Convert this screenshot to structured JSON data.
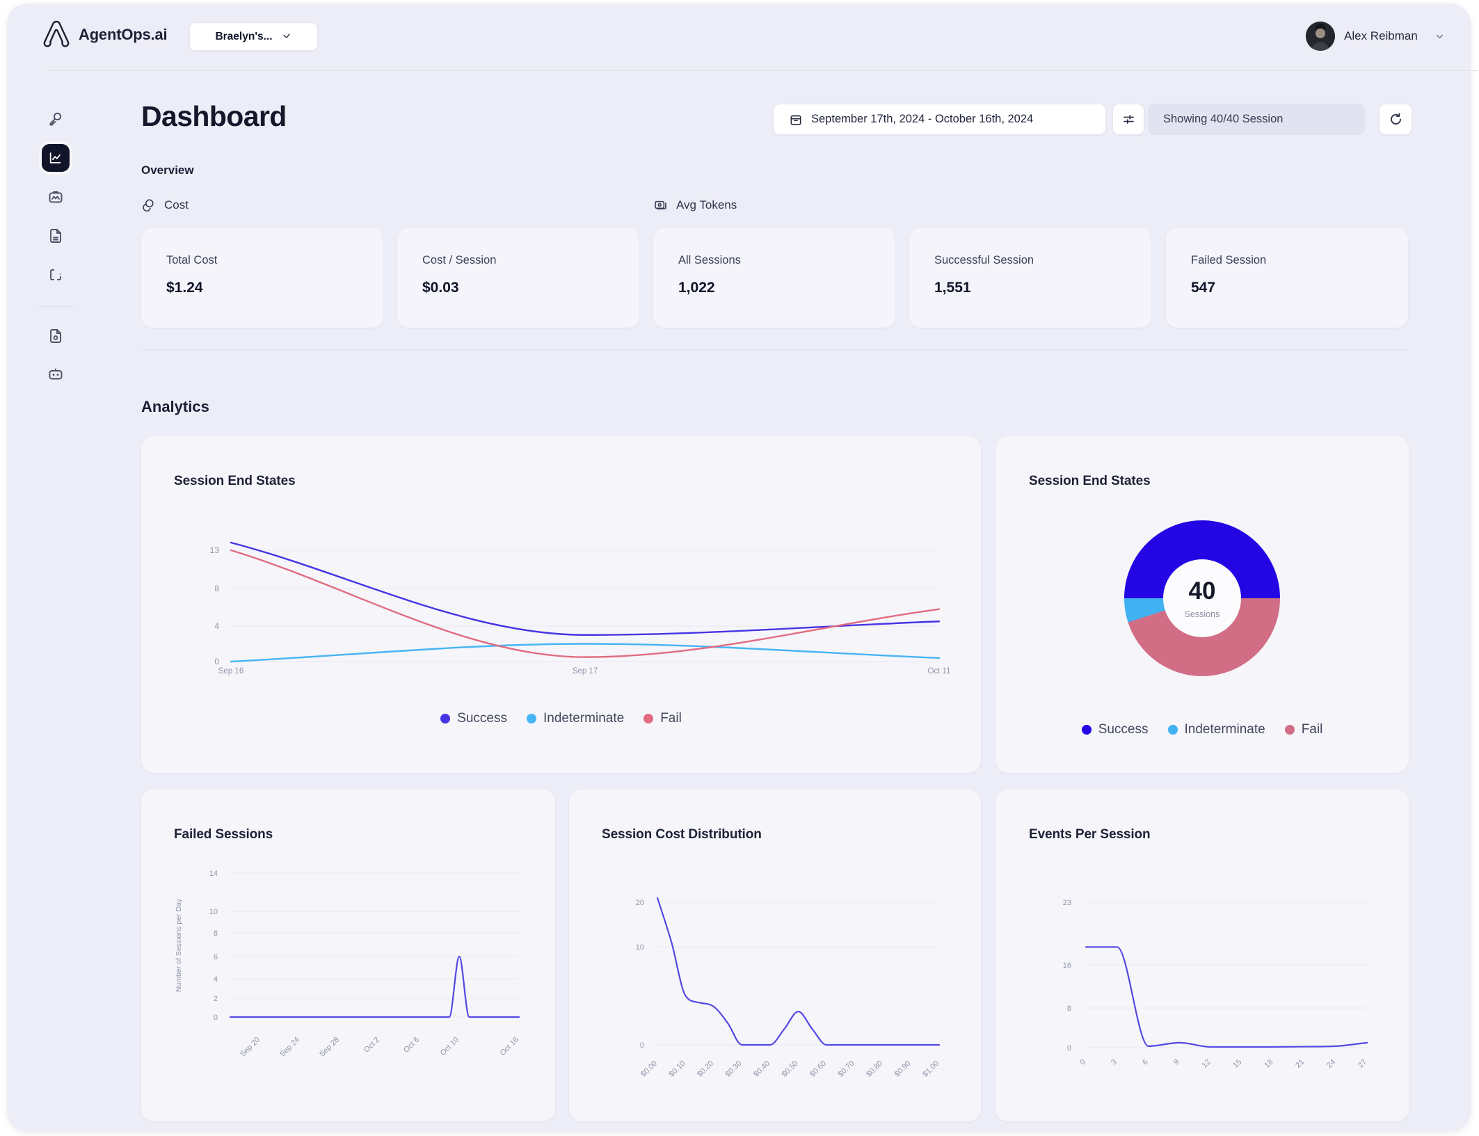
{
  "brand": {
    "name": "AgentOps.ai",
    "logo_icon": "agentops-a-logo"
  },
  "topbar": {
    "workspace_selector": {
      "label": "Braelyn's...",
      "chevron_icon": "chevron-down-icon"
    },
    "user": {
      "name": "Alex Reibman",
      "avatar_icon": "user-avatar-photo",
      "chevron_icon": "chevron-down-icon"
    }
  },
  "sidebar": {
    "items": [
      {
        "id": "api-keys",
        "icon": "key-icon",
        "active": false
      },
      {
        "id": "dashboard",
        "icon": "line-chart-icon",
        "active": true
      },
      {
        "id": "sessions",
        "icon": "session-replay-icon",
        "active": false
      },
      {
        "id": "evaluations",
        "icon": "file-report-icon",
        "active": false
      },
      {
        "id": "logs",
        "icon": "code-brackets-icon",
        "active": false
      },
      {
        "id": "docs",
        "icon": "document-icon",
        "active": false
      },
      {
        "id": "agents",
        "icon": "bot-icon",
        "active": false
      }
    ]
  },
  "header": {
    "title": "Dashboard",
    "date_range": "September 17th, 2024 - October 16th, 2024",
    "date_icon": "calendar-icon",
    "filter_icon": "filter-sliders-icon",
    "showing_label": "Showing 40/40 Session",
    "refresh_icon": "refresh-icon"
  },
  "overview": {
    "label": "Overview",
    "groups": [
      {
        "label": "Cost",
        "icon": "coin-icon"
      },
      {
        "label": "Avg Tokens",
        "icon": "tokens-icon"
      }
    ],
    "stats": [
      {
        "label": "Total Cost",
        "value": "$1.24"
      },
      {
        "label": "Cost / Session",
        "value": "$0.03"
      },
      {
        "label": "All Sessions",
        "value": "1,022"
      },
      {
        "label": "Successful Session",
        "value": "1,551"
      },
      {
        "label": "Failed Session",
        "value": "547"
      }
    ]
  },
  "analytics": {
    "label": "Analytics"
  },
  "colors": {
    "success_line": "#4734e3",
    "indeterminate": "#47b4f4",
    "fail_line": "#e26b80",
    "success_donut": "#2306e3",
    "indeterminate_donut": "#41b1f2",
    "fail_donut": "#d16d85",
    "indigo_series": "#5448e2",
    "grid": "#e9e9f3",
    "axis_text": "#8f94a7"
  },
  "chart_data": [
    {
      "id": "session-end-states-line",
      "type": "line",
      "title": "Session End States",
      "x": [
        "Sep 16",
        "Sep 17",
        "Oct 11"
      ],
      "yticks": [
        0,
        4,
        8,
        13
      ],
      "series": [
        {
          "name": "Success",
          "color": "#4734e3",
          "values": [
            14,
            3,
            4.5
          ]
        },
        {
          "name": "Indeterminate",
          "color": "#47b4f4",
          "values": [
            0,
            2,
            0.4
          ]
        },
        {
          "name": "Fail",
          "color": "#e26b80",
          "values": [
            13,
            0.5,
            5.8
          ]
        }
      ],
      "legend_position": "bottom",
      "grid": true
    },
    {
      "id": "session-end-states-donut",
      "type": "pie",
      "title": "Session End States",
      "center_value": "40",
      "center_label": "Sessions",
      "clockwise_order_from_left": [
        "Success",
        "Fail",
        "Indeterminate"
      ],
      "slices": [
        {
          "name": "Success",
          "value": 20,
          "color": "#2306e3"
        },
        {
          "name": "Indeterminate",
          "value": 2,
          "color": "#41b1f2"
        },
        {
          "name": "Fail",
          "value": 18,
          "color": "#d16d85"
        }
      ],
      "legend_position": "bottom"
    },
    {
      "id": "failed-sessions",
      "type": "line",
      "title": "Failed Sessions",
      "ylabel": "Number of Sessions per Day",
      "yticks": [
        0,
        2,
        4,
        6,
        8,
        10,
        14
      ],
      "xticks": [
        "Sep 20",
        "Sep 24",
        "Sep 28",
        "Oct 2",
        "Oct 6",
        "Oct 10",
        "Oct 16"
      ],
      "x_days": 30,
      "series": [
        {
          "name": "Failed Sessions",
          "color": "#5448e2",
          "values": [
            0,
            0,
            0,
            0,
            0,
            0,
            0,
            0,
            0,
            0,
            0,
            0,
            0,
            0,
            0,
            0,
            0,
            0,
            0,
            0,
            0,
            0,
            0,
            6,
            0,
            0,
            0,
            0,
            0,
            0
          ]
        }
      ],
      "grid": true
    },
    {
      "id": "session-cost-distribution",
      "type": "line",
      "title": "Session Cost Distribution",
      "yticks": [
        0,
        10,
        20
      ],
      "xticks": [
        "$0.00",
        "$0.10",
        "$0.20",
        "$0.30",
        "$0.40",
        "$0.50",
        "$0.60",
        "$0.70",
        "$0.80",
        "$0.90",
        "$1.00"
      ],
      "series": [
        {
          "name": "Sessions",
          "color": "#5448e2",
          "values": [
            21,
            11,
            5,
            4.3,
            3.9,
            2.2,
            0,
            0,
            0,
            1.6,
            3.4,
            1.6,
            0,
            0,
            0,
            0,
            0,
            0,
            0,
            0,
            0
          ]
        }
      ],
      "grid": true
    },
    {
      "id": "events-per-session",
      "type": "line",
      "title": "Events Per Session",
      "yticks": [
        0,
        8,
        16,
        23
      ],
      "xticks": [
        "0",
        "3",
        "6",
        "9",
        "12",
        "15",
        "18",
        "21",
        "24",
        "27"
      ],
      "series": [
        {
          "name": "Events",
          "color": "#5448e2",
          "values": [
            18,
            18,
            0.3,
            1,
            0.15,
            0.15,
            0.15,
            0.2,
            0.3,
            1
          ]
        }
      ],
      "grid": true
    }
  ]
}
